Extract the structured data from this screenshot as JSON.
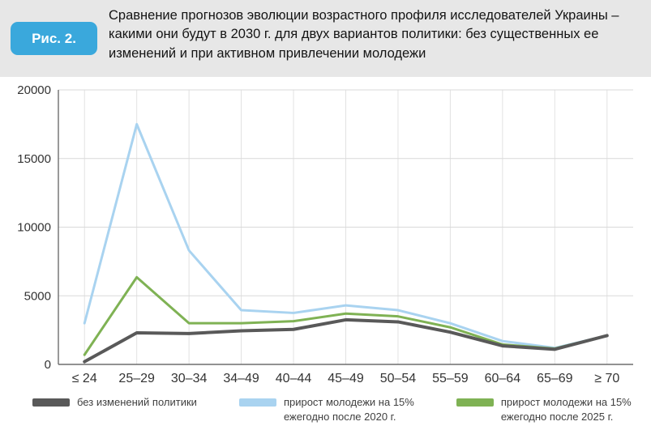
{
  "header": {
    "badge": "Рис. 2.",
    "title": "Сравнение прогнозов эволюции возрастного профиля исследователей Украины – какими они будут в 2030 г. для двух вариантов политики: без существенных ее изменений и при активном привлечении молодежи"
  },
  "chart_data": {
    "type": "line",
    "title": "",
    "xlabel": "",
    "ylabel": "",
    "categories": [
      "≤ 24",
      "25–29",
      "30–34",
      "34–49",
      "40–44",
      "45–49",
      "50–54",
      "55–59",
      "60–64",
      "65–69",
      "≥ 70"
    ],
    "series": [
      {
        "name": "без изменений политики",
        "color": "#595959",
        "width": 4,
        "values": [
          200,
          2300,
          2250,
          2450,
          2550,
          3250,
          3100,
          2350,
          1350,
          1100,
          2100
        ]
      },
      {
        "name": "прирост молодежи на 15% ежегодно после 2020 г.",
        "color": "#a9d3f0",
        "width": 3,
        "values": [
          3000,
          17500,
          8300,
          3950,
          3750,
          4300,
          3950,
          3000,
          1700,
          1200,
          2100
        ]
      },
      {
        "name": "прирост молодежи на 15% ежегодно после 2025 г.",
        "color": "#7fb254",
        "width": 3,
        "values": [
          700,
          6350,
          3000,
          3000,
          3150,
          3700,
          3500,
          2700,
          1450,
          1150,
          2100
        ]
      }
    ],
    "ylim": [
      0,
      20000
    ],
    "yticks": [
      0,
      5000,
      10000,
      15000,
      20000
    ],
    "grid": true,
    "legend_position": "bottom"
  },
  "legend": {
    "items": [
      {
        "lines": [
          "без изменений политики"
        ],
        "color": "#595959"
      },
      {
        "lines": [
          "прирост молодежи на 15%",
          "ежегодно после 2020 г."
        ],
        "color": "#a9d3f0"
      },
      {
        "lines": [
          "прирост молодежи на 15%",
          "ежегодно после 2025 г."
        ],
        "color": "#7fb254"
      }
    ]
  },
  "colors": {
    "badge_bg": "#3aa8dc",
    "header_bg": "#e7e7e7",
    "grid_h": "#d9d9d9",
    "grid_v": "#e2e2e2",
    "axis": "#6e6e6e"
  }
}
